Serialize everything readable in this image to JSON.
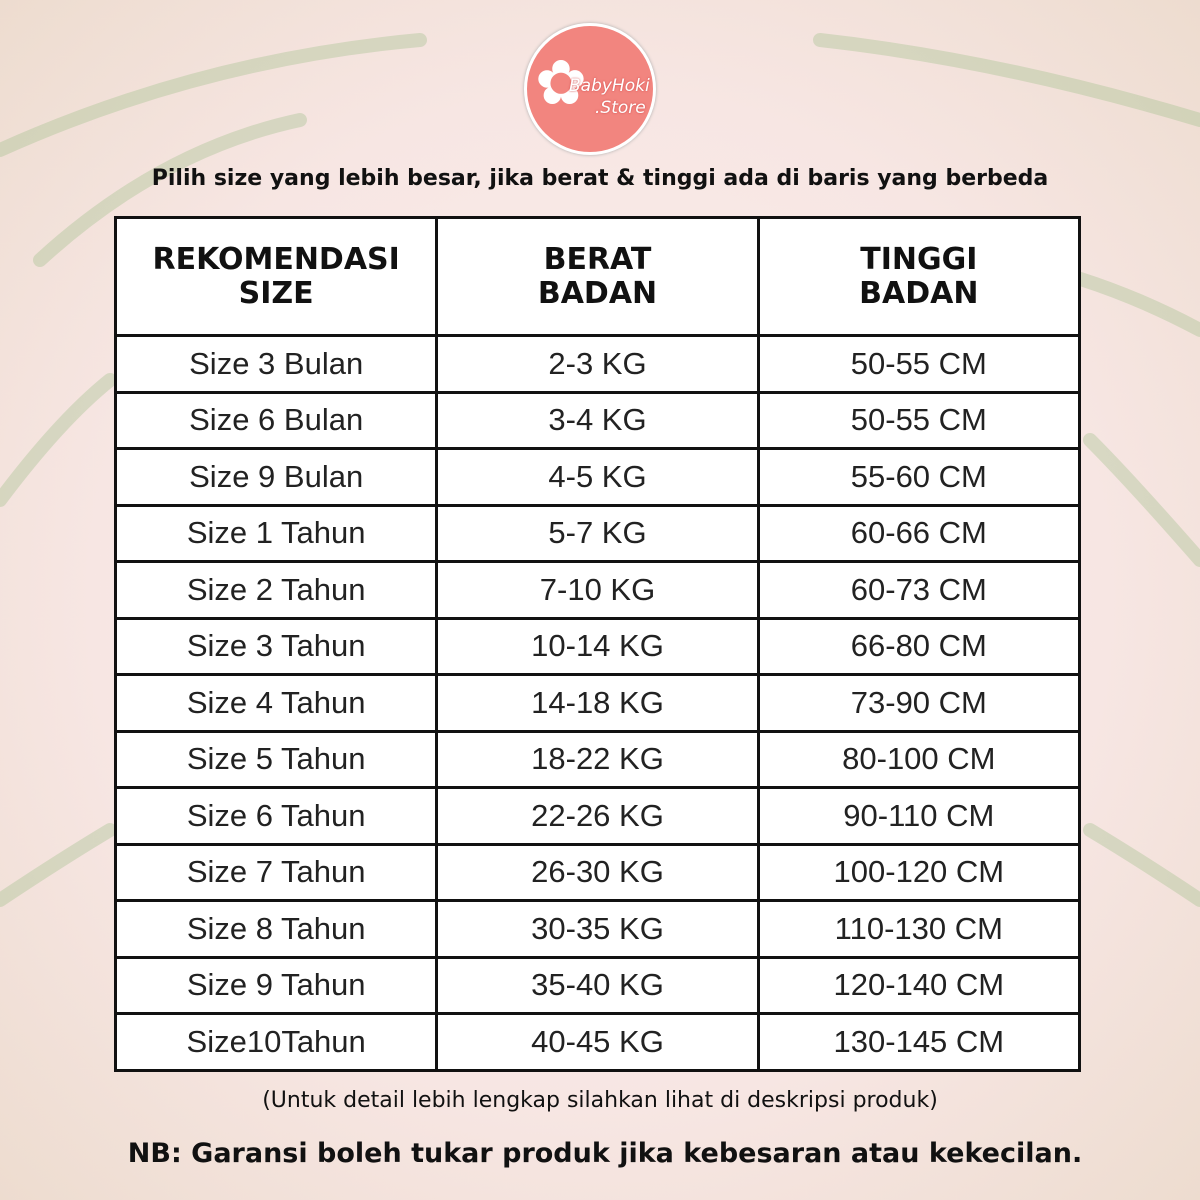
{
  "logo": {
    "brand": "BabyHoki",
    "suffix": ".Store",
    "color": "#f2857f"
  },
  "top_note": "Pilih size yang lebih besar, jika berat & tinggi ada di baris yang berbeda",
  "table": {
    "headers": [
      [
        "REKOMENDASI",
        "SIZE"
      ],
      [
        "BERAT",
        "BADAN"
      ],
      [
        "TINGGI",
        "BADAN"
      ]
    ],
    "rows": [
      [
        "Size 3 Bulan",
        "2-3 KG",
        "50-55 CM"
      ],
      [
        "Size 6 Bulan",
        "3-4 KG",
        "50-55 CM"
      ],
      [
        "Size 9 Bulan",
        "4-5 KG",
        "55-60 CM"
      ],
      [
        "Size 1 Tahun",
        "5-7 KG",
        "60-66 CM"
      ],
      [
        "Size 2 Tahun",
        "7-10 KG",
        "60-73 CM"
      ],
      [
        "Size 3 Tahun",
        "10-14 KG",
        "66-80 CM"
      ],
      [
        "Size 4 Tahun",
        "14-18 KG",
        "73-90 CM"
      ],
      [
        "Size 5 Tahun",
        "18-22 KG",
        "80-100 CM"
      ],
      [
        "Size 6 Tahun",
        "22-26 KG",
        "90-110 CM"
      ],
      [
        "Size 7 Tahun",
        "26-30 KG",
        "100-120 CM"
      ],
      [
        "Size 8 Tahun",
        "30-35 KG",
        "110-130 CM"
      ],
      [
        "Size 9 Tahun",
        "35-40 KG",
        "120-140 CM"
      ],
      [
        "Size10Tahun",
        "40-45 KG",
        "130-145 CM"
      ]
    ]
  },
  "sub_note": "(Untuk detail lebih lengkap silahkan lihat di deskripsi produk)",
  "nb_note": "NB: Garansi boleh tukar produk jika kebesaran atau kekecilan."
}
